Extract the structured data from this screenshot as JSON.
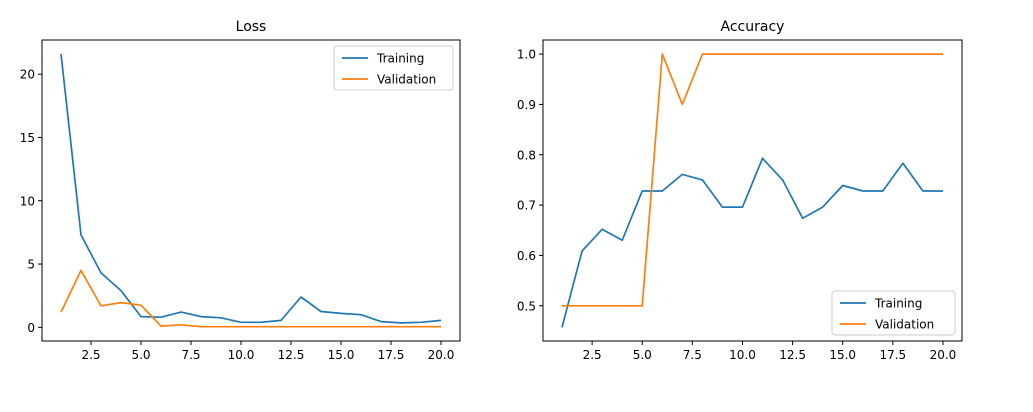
{
  "colors": {
    "training": "#1f77b4",
    "validation": "#ff7f0e",
    "axis": "#000000",
    "background": "#ffffff"
  },
  "chart_data": [
    {
      "type": "line",
      "title": "Loss",
      "xlabel": "",
      "ylabel": "",
      "xlim": [
        0.05,
        20.95
      ],
      "ylim": [
        -1.08,
        22.7
      ],
      "xticks": [
        2.5,
        5.0,
        7.5,
        10.0,
        12.5,
        15.0,
        17.5,
        20.0
      ],
      "xtick_labels": [
        "2.5",
        "5.0",
        "7.5",
        "10.0",
        "12.5",
        "15.0",
        "17.5",
        "20.0"
      ],
      "yticks": [
        0,
        5,
        10,
        15,
        20
      ],
      "ytick_labels": [
        "0",
        "5",
        "10",
        "15",
        "20"
      ],
      "grid": false,
      "legend_position": "upper-right",
      "x": [
        1,
        2,
        3,
        4,
        5,
        6,
        7,
        8,
        9,
        10,
        11,
        12,
        13,
        14,
        15,
        16,
        17,
        18,
        19,
        20
      ],
      "series": [
        {
          "name": "Training",
          "color": "#1f77b4",
          "values": [
            21.6,
            7.3,
            4.3,
            2.9,
            0.85,
            0.8,
            1.2,
            0.85,
            0.75,
            0.4,
            0.4,
            0.55,
            2.4,
            1.25,
            1.1,
            1.0,
            0.45,
            0.35,
            0.4,
            0.55
          ]
        },
        {
          "name": "Validation",
          "color": "#ff7f0e",
          "values": [
            1.2,
            4.5,
            1.7,
            1.95,
            1.75,
            0.1,
            0.2,
            0.05,
            0.05,
            0.05,
            0.05,
            0.05,
            0.05,
            0.05,
            0.05,
            0.05,
            0.05,
            0.05,
            0.05,
            0.05
          ]
        }
      ]
    },
    {
      "type": "line",
      "title": "Accuracy",
      "xlabel": "",
      "ylabel": "",
      "xlim": [
        0.05,
        20.95
      ],
      "ylim": [
        0.43,
        1.028
      ],
      "xticks": [
        2.5,
        5.0,
        7.5,
        10.0,
        12.5,
        15.0,
        17.5,
        20.0
      ],
      "xtick_labels": [
        "2.5",
        "5.0",
        "7.5",
        "10.0",
        "12.5",
        "15.0",
        "17.5",
        "20.0"
      ],
      "yticks": [
        0.5,
        0.6,
        0.7,
        0.8,
        0.9,
        1.0
      ],
      "ytick_labels": [
        "0.5",
        "0.6",
        "0.7",
        "0.8",
        "0.9",
        "1.0"
      ],
      "grid": false,
      "legend_position": "lower-right",
      "x": [
        1,
        2,
        3,
        4,
        5,
        6,
        7,
        8,
        9,
        10,
        11,
        12,
        13,
        14,
        15,
        16,
        17,
        18,
        19,
        20
      ],
      "series": [
        {
          "name": "Training",
          "color": "#1f77b4",
          "values": [
            0.457,
            0.609,
            0.652,
            0.63,
            0.728,
            0.728,
            0.761,
            0.75,
            0.696,
            0.696,
            0.793,
            0.75,
            0.674,
            0.696,
            0.739,
            0.728,
            0.728,
            0.783,
            0.728,
            0.728
          ]
        },
        {
          "name": "Validation",
          "color": "#ff7f0e",
          "values": [
            0.5,
            0.5,
            0.5,
            0.5,
            0.5,
            1.0,
            0.9,
            1.0,
            1.0,
            1.0,
            1.0,
            1.0,
            1.0,
            1.0,
            1.0,
            1.0,
            1.0,
            1.0,
            1.0,
            1.0
          ]
        }
      ]
    }
  ]
}
